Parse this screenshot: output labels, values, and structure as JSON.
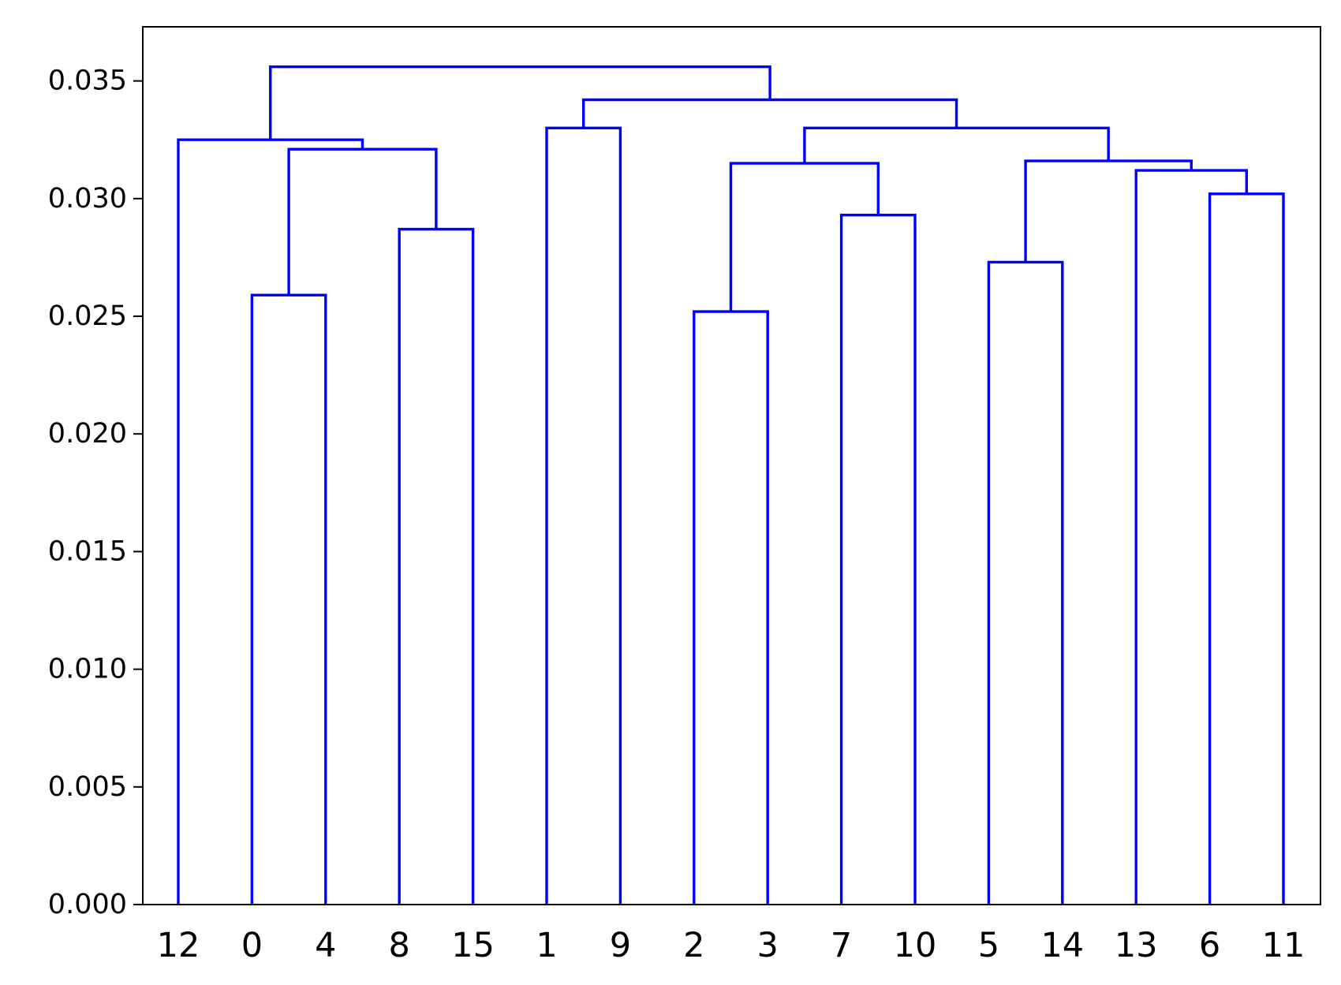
{
  "chart_data": {
    "type": "dendrogram",
    "title": "",
    "xlabel": "",
    "ylabel": "",
    "ylim": [
      0,
      0.0373
    ],
    "yticks": [
      0.0,
      0.005,
      0.01,
      0.015,
      0.02,
      0.025,
      0.03,
      0.035
    ],
    "ytick_labels": [
      "0.000",
      "0.005",
      "0.010",
      "0.015",
      "0.020",
      "0.025",
      "0.030",
      "0.035"
    ],
    "leaves": [
      "12",
      "0",
      "4",
      "8",
      "15",
      "1",
      "9",
      "2",
      "3",
      "7",
      "10",
      "5",
      "14",
      "13",
      "6",
      "11"
    ],
    "link_color": "#0000ff",
    "grid": false,
    "merges": [
      {
        "id": "A",
        "children": [
          "0",
          "4"
        ],
        "height": 0.0259
      },
      {
        "id": "B",
        "children": [
          "8",
          "15"
        ],
        "height": 0.0287
      },
      {
        "id": "C",
        "children": [
          "A",
          "B"
        ],
        "height": 0.0321
      },
      {
        "id": "D",
        "children": [
          "12",
          "C"
        ],
        "height": 0.0325
      },
      {
        "id": "E",
        "children": [
          "1",
          "9"
        ],
        "height": 0.033
      },
      {
        "id": "F",
        "children": [
          "2",
          "3"
        ],
        "height": 0.0252
      },
      {
        "id": "G",
        "children": [
          "7",
          "10"
        ],
        "height": 0.0293
      },
      {
        "id": "H",
        "children": [
          "F",
          "G"
        ],
        "height": 0.0315
      },
      {
        "id": "I",
        "children": [
          "5",
          "14"
        ],
        "height": 0.0273
      },
      {
        "id": "J",
        "children": [
          "6",
          "11"
        ],
        "height": 0.0302
      },
      {
        "id": "K",
        "children": [
          "13",
          "J"
        ],
        "height": 0.0312
      },
      {
        "id": "L",
        "children": [
          "I",
          "K"
        ],
        "height": 0.0316
      },
      {
        "id": "M",
        "children": [
          "H",
          "L"
        ],
        "height": 0.033
      },
      {
        "id": "N",
        "children": [
          "E",
          "M"
        ],
        "height": 0.0342
      },
      {
        "id": "O",
        "children": [
          "D",
          "N"
        ],
        "height": 0.0356
      }
    ]
  }
}
